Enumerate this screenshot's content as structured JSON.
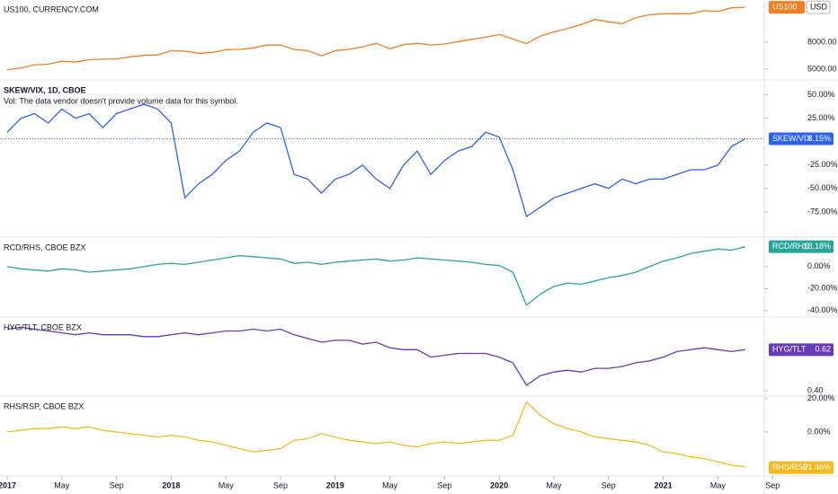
{
  "x_categories": [
    "2017",
    null,
    null,
    null,
    "May",
    null,
    null,
    null,
    "Sep",
    null,
    null,
    null,
    "2018",
    null,
    null,
    null,
    "May",
    null,
    null,
    null,
    "Sep",
    null,
    null,
    null,
    "2019",
    null,
    null,
    null,
    "May",
    null,
    null,
    null,
    "Sep",
    null,
    null,
    null,
    "2020",
    null,
    null,
    null,
    "May",
    null,
    null,
    null,
    "Sep",
    null,
    null,
    null,
    "2021",
    null,
    null,
    null,
    "May",
    null,
    null,
    null,
    "Sep"
  ],
  "chart_data": [
    {
      "type": "line",
      "title": "US100, CURRENCY.COM",
      "color": "#f57c1f",
      "log": true,
      "ylim": [
        4210,
        16680
      ],
      "yticks": [
        {
          "value": 8000,
          "label": "8000.00"
        },
        {
          "value": 5000,
          "label": "5000.00"
        }
      ],
      "last_name": "US100",
      "last_unit": "USD",
      "values": [
        4950,
        5100,
        5400,
        5450,
        5750,
        5650,
        5900,
        5950,
        5980,
        6200,
        6350,
        6400,
        6900,
        6850,
        6600,
        6700,
        7000,
        7050,
        7250,
        7600,
        7620,
        7050,
        6900,
        6300,
        6900,
        7050,
        7370,
        7850,
        7130,
        7670,
        7850,
        7620,
        7750,
        8080,
        8400,
        8730,
        9150,
        8450,
        7800,
        8900,
        9550,
        10150,
        10900,
        11900,
        11400,
        11050,
        12250,
        12900,
        13100,
        13150,
        13100,
        13850,
        13700,
        14550,
        14700,
        null,
        null
      ]
    },
    {
      "type": "line",
      "title": "SKEW/VIX, 1D, CBOE",
      "subtitle": "Vol: The data vendor doesn't provide volume data for this symbol.",
      "color": "#2962ff",
      "ylim": [
        -101,
        65
      ],
      "yticks": [
        {
          "value": 50,
          "label": "50.00%"
        },
        {
          "value": 25,
          "label": "25.00%"
        },
        {
          "value": -25,
          "label": "-25.00%"
        },
        {
          "value": -50,
          "label": "-50.00%"
        },
        {
          "value": -75,
          "label": "-75.00%"
        }
      ],
      "last_name": "SKEW/VIX",
      "last_value": {
        "value": 3.15,
        "label": "3.15%"
      },
      "values": [
        10,
        25,
        30,
        20,
        35,
        25,
        30,
        15,
        30,
        35,
        40,
        35,
        20,
        -60,
        -45,
        -35,
        -20,
        -10,
        10,
        20,
        15,
        -35,
        -40,
        -55,
        -40,
        -35,
        -25,
        -40,
        -50,
        -25,
        -10,
        -35,
        -20,
        -10,
        -5,
        10,
        5,
        -30,
        -80,
        -70,
        -60,
        -55,
        -50,
        -45,
        -50,
        -40,
        -45,
        -40,
        -40,
        -35,
        -30,
        -30,
        -25,
        -5,
        3,
        null,
        null
      ]
    },
    {
      "type": "line",
      "title": "RCD/RHS, CBOE BZX",
      "color": "#26a69a",
      "ylim": [
        -45,
        26
      ],
      "yticks": [
        {
          "value": 0,
          "label": "0.00%"
        },
        {
          "value": -20,
          "label": "-20.00%"
        },
        {
          "value": -40,
          "label": "-40.00%"
        }
      ],
      "last_name": "RCD/RHS",
      "last_value": {
        "value": 18.18,
        "label": "18.18%"
      },
      "values": [
        0,
        -2,
        -3,
        -4,
        -2,
        -3,
        -5,
        -4,
        -3,
        -2,
        0,
        2,
        3,
        2,
        4,
        6,
        8,
        10,
        9,
        8,
        7,
        3,
        4,
        2,
        4,
        5,
        6,
        7,
        5,
        6,
        8,
        7,
        6,
        5,
        4,
        2,
        1,
        -5,
        -35,
        -25,
        -18,
        -15,
        -16,
        -13,
        -10,
        -8,
        -5,
        0,
        5,
        8,
        12,
        14,
        16,
        15,
        18,
        null,
        null
      ]
    },
    {
      "type": "line",
      "title": "HYG/TLT, CBOE BZX",
      "color": "#673ab7",
      "ylim": [
        0.376,
        0.79
      ],
      "yticks": [
        {
          "value": 0.4,
          "label": "0.40"
        }
      ],
      "last_name": "HYG/TLT",
      "last_value": 0.62,
      "values": [
        0.73,
        0.74,
        0.73,
        0.72,
        0.71,
        0.7,
        0.71,
        0.7,
        0.7,
        0.7,
        0.69,
        0.69,
        0.7,
        0.71,
        0.7,
        0.71,
        0.72,
        0.72,
        0.73,
        0.72,
        0.73,
        0.7,
        0.68,
        0.66,
        0.67,
        0.67,
        0.65,
        0.66,
        0.63,
        0.62,
        0.62,
        0.58,
        0.59,
        0.6,
        0.6,
        0.6,
        0.58,
        0.55,
        0.43,
        0.48,
        0.5,
        0.51,
        0.5,
        0.52,
        0.52,
        0.53,
        0.55,
        0.56,
        0.58,
        0.61,
        0.62,
        0.63,
        0.62,
        0.61,
        0.62,
        null,
        null
      ]
    },
    {
      "type": "line",
      "title": "RHS/RSP, CBOE BZX",
      "color": "#f9b81b",
      "ylim": [
        -26.5,
        21
      ],
      "yticks": [
        {
          "value": 20,
          "label": "20.00%"
        },
        {
          "value": 0,
          "label": "0.00%"
        }
      ],
      "last_name": "RHS/RSP",
      "last_value": {
        "value": -21.46,
        "label": "-21.46%"
      },
      "values": [
        0,
        1,
        2,
        2,
        3,
        2,
        3,
        1,
        0,
        -1,
        -2,
        -3,
        -2,
        -3,
        -5,
        -6,
        -8,
        -10,
        -12,
        -11,
        -10,
        -5,
        -4,
        -1,
        -3,
        -5,
        -6,
        -7,
        -6,
        -8,
        -9,
        -7,
        -6,
        -7,
        -6,
        -5,
        -5,
        -2,
        18,
        10,
        5,
        2,
        0,
        -3,
        -4,
        -5,
        -6,
        -8,
        -12,
        -13,
        -15,
        -16,
        -18,
        -20,
        -21,
        null,
        null
      ]
    }
  ]
}
